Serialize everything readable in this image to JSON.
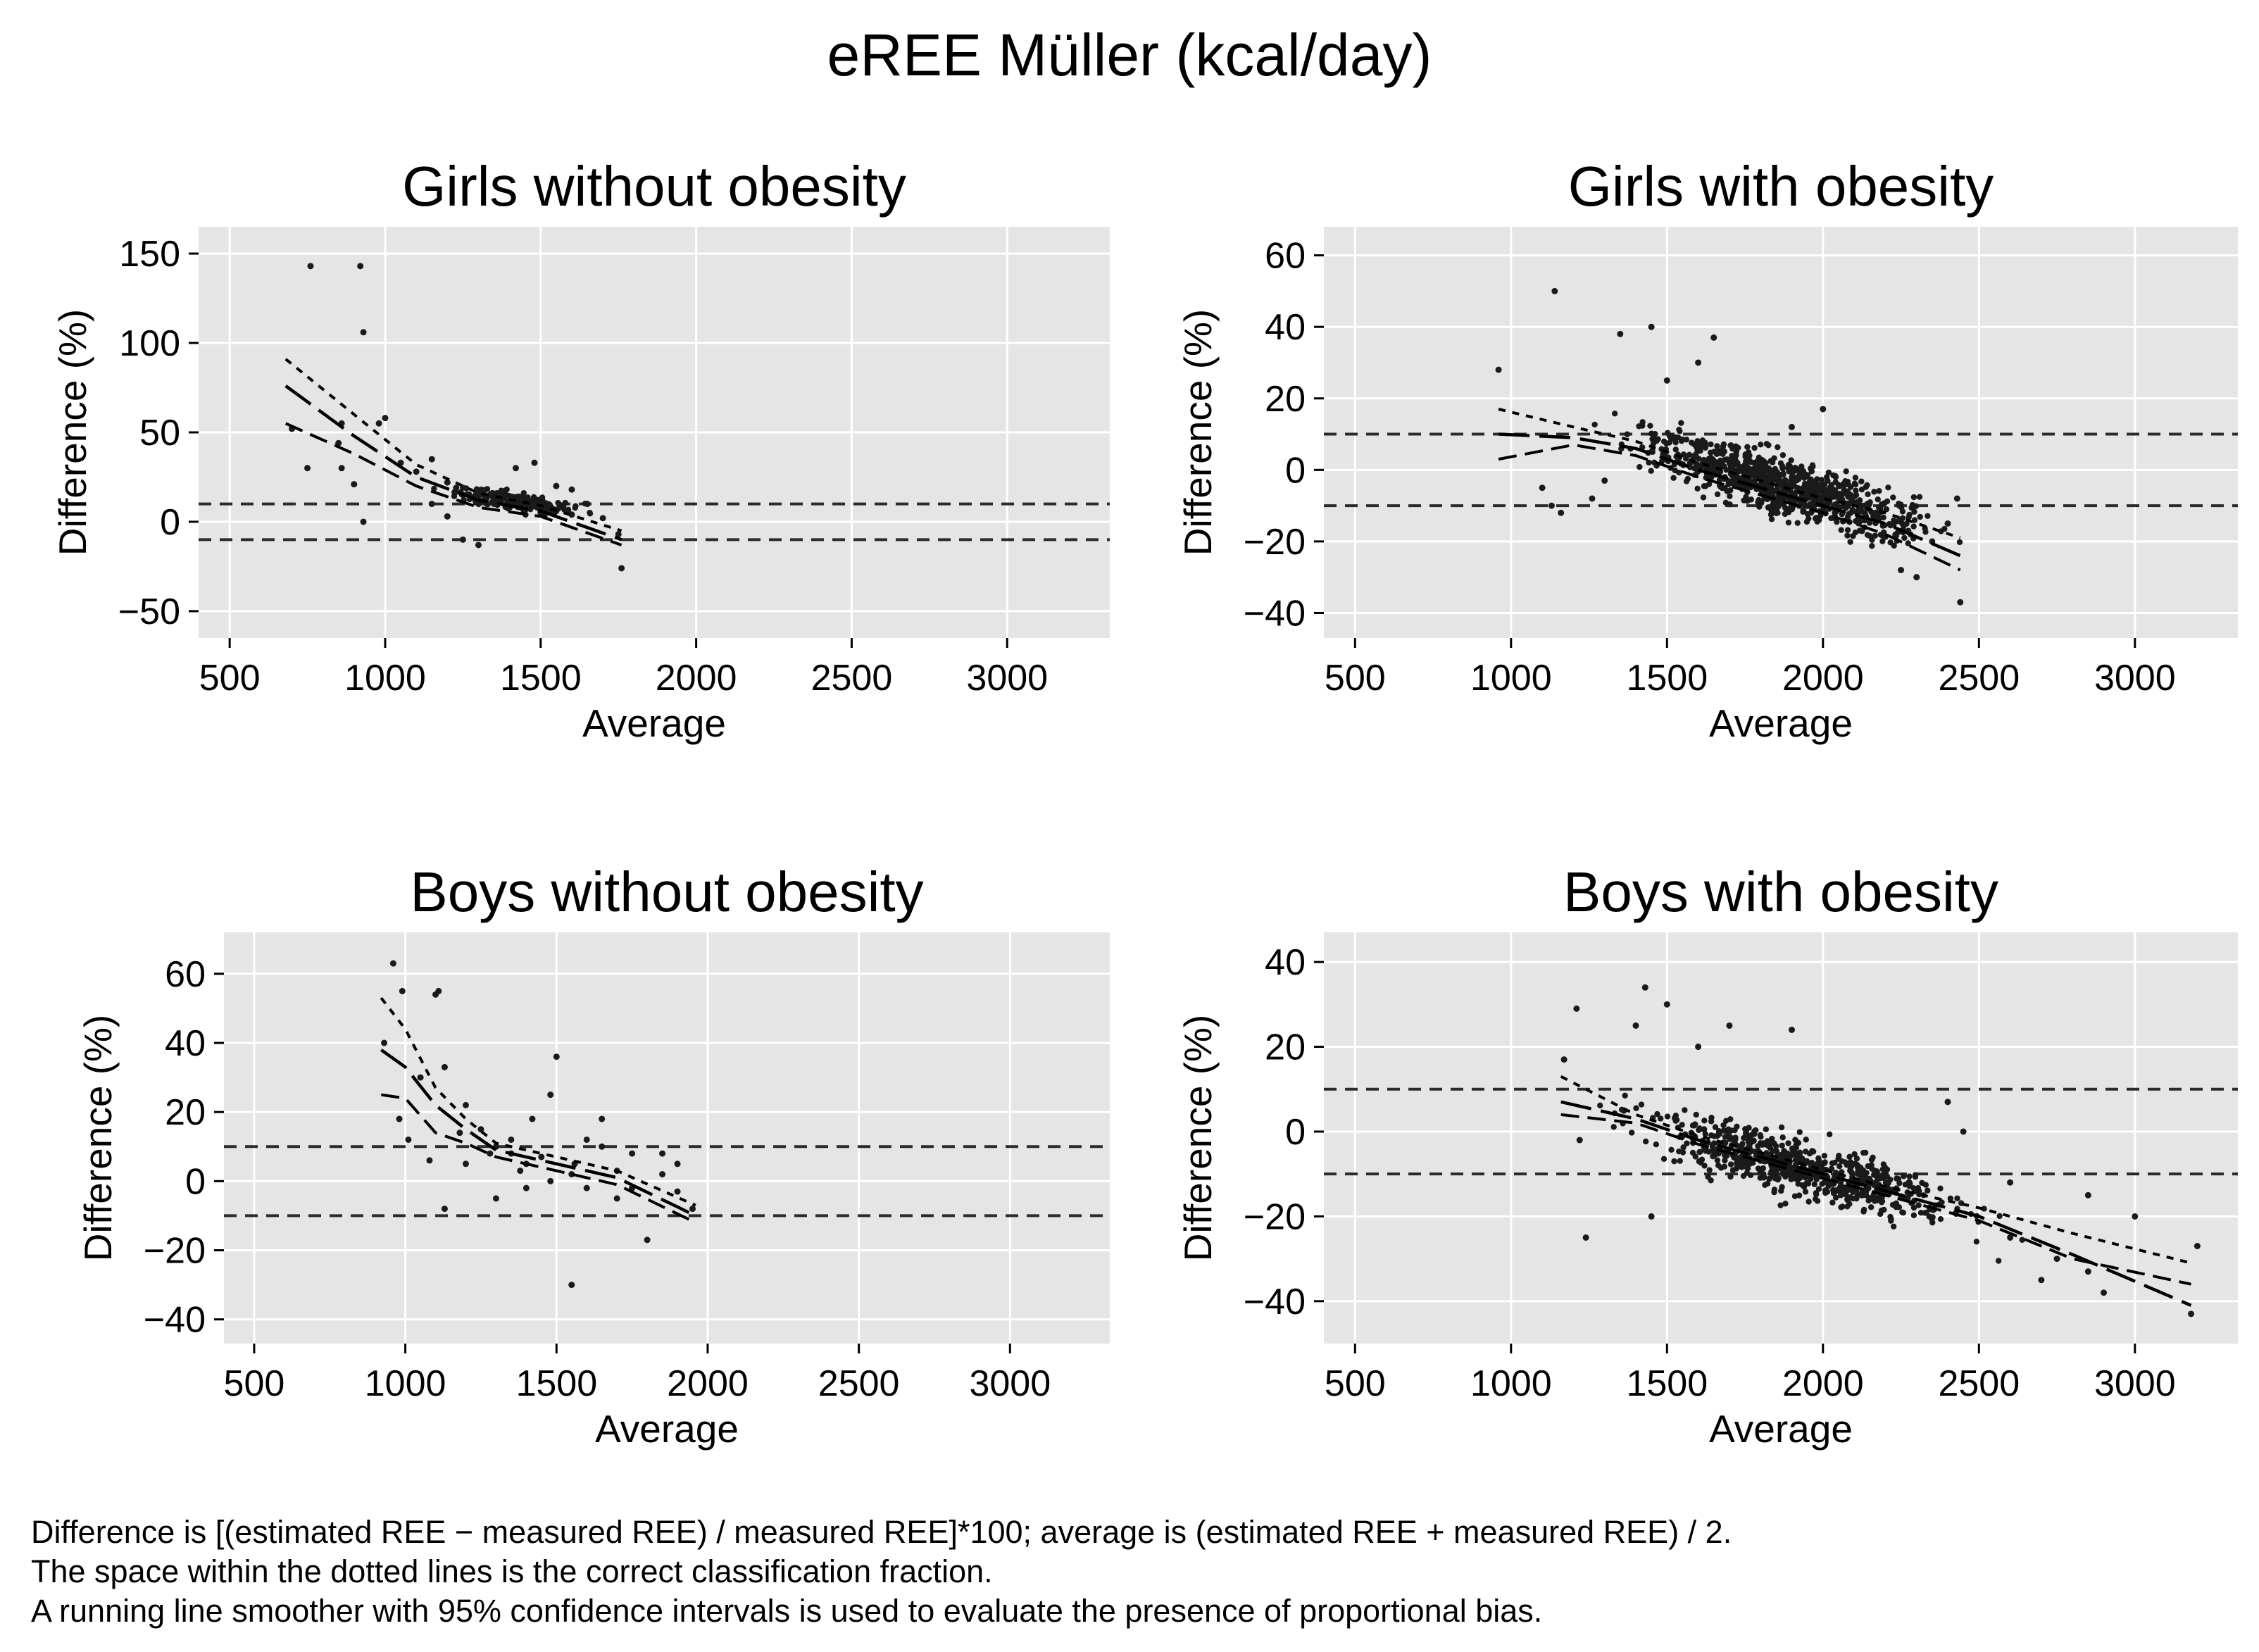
{
  "figure": {
    "title": "eREE Müller (kcal/day)",
    "footnotes": [
      "Difference is [(estimated REE − measured REE) / measured REE]*100; average is (estimated REE + measured REE) / 2.",
      "The space within the dotted lines is the correct classification fraction.",
      "A running line smoother with 95% confidence intervals is used to evaluate the presence of proportional bias."
    ],
    "colors": {
      "plot_bg": "#e5e5e5",
      "grid": "#ffffff",
      "ink": "#1a1a1a"
    }
  },
  "chart_data": [
    {
      "type": "scatter",
      "title": "Girls without obesity",
      "xlabel": "Average",
      "ylabel": "Difference (%)",
      "xlim": [
        400,
        3330
      ],
      "ylim": [
        -65,
        165
      ],
      "xticks": [
        500,
        1000,
        1500,
        2000,
        2500,
        3000
      ],
      "yticks": [
        -50,
        0,
        50,
        100,
        150
      ],
      "reference_lines": [
        10,
        -10
      ],
      "points": [
        [
          760,
          143
        ],
        [
          920,
          143
        ],
        [
          930,
          106
        ],
        [
          980,
          55
        ],
        [
          1000,
          58
        ],
        [
          750,
          30
        ],
        [
          700,
          52
        ],
        [
          860,
          55
        ],
        [
          860,
          30
        ],
        [
          930,
          0
        ],
        [
          900,
          21
        ],
        [
          850,
          44
        ],
        [
          1050,
          33
        ],
        [
          1100,
          28
        ],
        [
          1150,
          35
        ],
        [
          1200,
          22
        ],
        [
          1250,
          15
        ],
        [
          1300,
          12
        ],
        [
          1350,
          10
        ],
        [
          1400,
          8
        ],
        [
          1450,
          12
        ],
        [
          1500,
          5
        ],
        [
          1550,
          6
        ],
        [
          1600,
          4
        ],
        [
          1650,
          10
        ],
        [
          1700,
          2
        ],
        [
          1760,
          -26
        ],
        [
          1200,
          3
        ],
        [
          1250,
          -10
        ],
        [
          1300,
          -13
        ],
        [
          1750,
          -7
        ],
        [
          1420,
          30
        ],
        [
          1480,
          33
        ],
        [
          1550,
          20
        ],
        [
          1600,
          18
        ],
        [
          1150,
          10
        ]
      ],
      "cloud": {
        "x_from": 1150,
        "x_to": 1700,
        "y_at_start": 18,
        "y_at_end": 5,
        "spread": 9,
        "count": 180
      },
      "smoother": {
        "x": [
          680,
          900,
          1100,
          1300,
          1500,
          1760
        ],
        "y": [
          76,
          48,
          25,
          12,
          6,
          -10
        ]
      },
      "ci_upper": {
        "x": [
          680,
          900,
          1100,
          1300,
          1500,
          1760
        ],
        "y": [
          91,
          60,
          32,
          16,
          9,
          -5
        ]
      },
      "ci_lower": {
        "x": [
          680,
          900,
          1100,
          1300,
          1500,
          1760
        ],
        "y": [
          55,
          38,
          20,
          8,
          3,
          -13
        ]
      }
    },
    {
      "type": "scatter",
      "title": "Girls with obesity",
      "xlabel": "Average",
      "ylabel": "Difference (%)",
      "xlim": [
        400,
        3330
      ],
      "ylim": [
        -47,
        68
      ],
      "xticks": [
        500,
        1000,
        1500,
        2000,
        2500,
        3000
      ],
      "yticks": [
        -40,
        -20,
        0,
        20,
        40,
        60
      ],
      "reference_lines": [
        10,
        -10
      ],
      "points": [
        [
          1140,
          50
        ],
        [
          960,
          28
        ],
        [
          1450,
          40
        ],
        [
          1350,
          38
        ],
        [
          1650,
          37
        ],
        [
          1100,
          -5
        ],
        [
          1130,
          -10
        ],
        [
          1160,
          -12
        ],
        [
          1260,
          -8
        ],
        [
          1300,
          -3
        ],
        [
          2000,
          17
        ],
        [
          2250,
          -28
        ],
        [
          2300,
          -30
        ],
        [
          2440,
          -37
        ],
        [
          2400,
          -15
        ],
        [
          2430,
          -8
        ],
        [
          2350,
          -20
        ],
        [
          1900,
          12
        ],
        [
          1600,
          30
        ],
        [
          1500,
          25
        ]
      ],
      "cloud": {
        "x_from": 1350,
        "x_to": 2400,
        "y_at_start": 9,
        "y_at_end": -18,
        "spread": 14,
        "count": 900
      },
      "smoother": {
        "x": [
          960,
          1200,
          1400,
          1600,
          1800,
          2000,
          2200,
          2440
        ],
        "y": [
          10,
          9,
          6,
          0,
          -5,
          -10,
          -15,
          -24
        ]
      },
      "ci_upper": {
        "x": [
          960,
          1200,
          1400,
          1600,
          1800,
          2000,
          2200,
          2440
        ],
        "y": [
          17,
          12,
          8,
          2,
          -3,
          -8,
          -12,
          -19
        ]
      },
      "ci_lower": {
        "x": [
          960,
          1200,
          1400,
          1600,
          1800,
          2000,
          2200,
          2440
        ],
        "y": [
          3,
          7,
          4,
          -2,
          -7,
          -12,
          -18,
          -28
        ]
      }
    },
    {
      "type": "scatter",
      "title": "Boys without obesity",
      "xlabel": "Average",
      "ylabel": "Difference (%)",
      "xlim": [
        400,
        3330
      ],
      "ylim": [
        -47,
        72
      ],
      "xticks": [
        500,
        1000,
        1500,
        2000,
        2500,
        3000
      ],
      "yticks": [
        -40,
        -20,
        0,
        20,
        40,
        60
      ],
      "reference_lines": [
        10,
        -10
      ],
      "points": [
        [
          960,
          63
        ],
        [
          990,
          55
        ],
        [
          1110,
          55
        ],
        [
          1100,
          54
        ],
        [
          1130,
          33
        ],
        [
          1050,
          30
        ],
        [
          930,
          40
        ],
        [
          980,
          18
        ],
        [
          1010,
          12
        ],
        [
          1200,
          22
        ],
        [
          1250,
          15
        ],
        [
          1300,
          10
        ],
        [
          1350,
          8
        ],
        [
          1400,
          5
        ],
        [
          1450,
          7
        ],
        [
          1480,
          25
        ],
        [
          1500,
          36
        ],
        [
          1550,
          -30
        ],
        [
          1560,
          5
        ],
        [
          1600,
          12
        ],
        [
          1650,
          18
        ],
        [
          1700,
          3
        ],
        [
          1750,
          8
        ],
        [
          1800,
          -17
        ],
        [
          1850,
          2
        ],
        [
          1900,
          -3
        ],
        [
          1950,
          -8
        ],
        [
          1300,
          -5
        ],
        [
          1400,
          -2
        ],
        [
          1600,
          -2
        ],
        [
          1700,
          -5
        ],
        [
          1130,
          -8
        ],
        [
          1200,
          5
        ],
        [
          1350,
          12
        ],
        [
          1420,
          18
        ],
        [
          1650,
          10
        ],
        [
          1750,
          -2
        ],
        [
          1850,
          8
        ],
        [
          1900,
          5
        ],
        [
          1550,
          2
        ],
        [
          1480,
          0
        ],
        [
          1380,
          3
        ],
        [
          1280,
          8
        ],
        [
          1180,
          14
        ],
        [
          1080,
          6
        ]
      ],
      "smoother": {
        "x": [
          920,
          1000,
          1100,
          1200,
          1300,
          1500,
          1700,
          1960
        ],
        "y": [
          38,
          33,
          22,
          15,
          9,
          5,
          1,
          -10
        ]
      },
      "ci_upper": {
        "x": [
          920,
          1000,
          1100,
          1200,
          1300,
          1500,
          1700,
          1960
        ],
        "y": [
          53,
          44,
          27,
          18,
          11,
          7,
          3,
          -7
        ]
      },
      "ci_lower": {
        "x": [
          920,
          1000,
          1100,
          1200,
          1300,
          1500,
          1700,
          1960
        ],
        "y": [
          25,
          24,
          14,
          11,
          7,
          3,
          -1,
          -12
        ]
      }
    },
    {
      "type": "scatter",
      "title": "Boys with obesity",
      "xlabel": "Average",
      "ylabel": "Difference (%)",
      "xlim": [
        400,
        3330
      ],
      "ylim": [
        -50,
        47
      ],
      "xticks": [
        500,
        1000,
        1500,
        2000,
        2500,
        3000
      ],
      "yticks": [
        -40,
        -20,
        0,
        20,
        40
      ],
      "reference_lines": [
        10,
        -10
      ],
      "points": [
        [
          1430,
          34
        ],
        [
          1500,
          30
        ],
        [
          1210,
          29
        ],
        [
          1900,
          24
        ],
        [
          1700,
          25
        ],
        [
          1240,
          -25
        ],
        [
          1450,
          -20
        ],
        [
          1220,
          -2
        ],
        [
          1170,
          17
        ],
        [
          2400,
          7
        ],
        [
          2450,
          0
        ],
        [
          2600,
          -25
        ],
        [
          2700,
          -35
        ],
        [
          2750,
          -30
        ],
        [
          2850,
          -33
        ],
        [
          2900,
          -38
        ],
        [
          3000,
          -20
        ],
        [
          3180,
          -43
        ],
        [
          3200,
          -27
        ],
        [
          2850,
          -15
        ],
        [
          2600,
          -12
        ],
        [
          1600,
          20
        ],
        [
          1400,
          25
        ]
      ],
      "cloud": {
        "x_from": 1300,
        "x_to": 2550,
        "y_at_start": 4,
        "y_at_end": -21,
        "spread": 12,
        "count": 700
      },
      "smoother": {
        "x": [
          1160,
          1400,
          1600,
          1800,
          2000,
          2200,
          2500,
          2800,
          3180
        ],
        "y": [
          7,
          3,
          -2,
          -6,
          -10,
          -14,
          -20,
          -29,
          -41
        ]
      },
      "ci_upper": {
        "x": [
          1160,
          1400,
          1600,
          1800,
          2000,
          2200,
          2500,
          2800,
          3180
        ],
        "y": [
          13,
          4,
          -1,
          -5,
          -9,
          -13,
          -18,
          -24,
          -31
        ]
      },
      "ci_lower": {
        "x": [
          1160,
          1400,
          1600,
          1800,
          2000,
          2200,
          2500,
          2800,
          3180
        ],
        "y": [
          4,
          2,
          -3,
          -7,
          -11,
          -15,
          -21,
          -30,
          -36
        ]
      }
    }
  ]
}
